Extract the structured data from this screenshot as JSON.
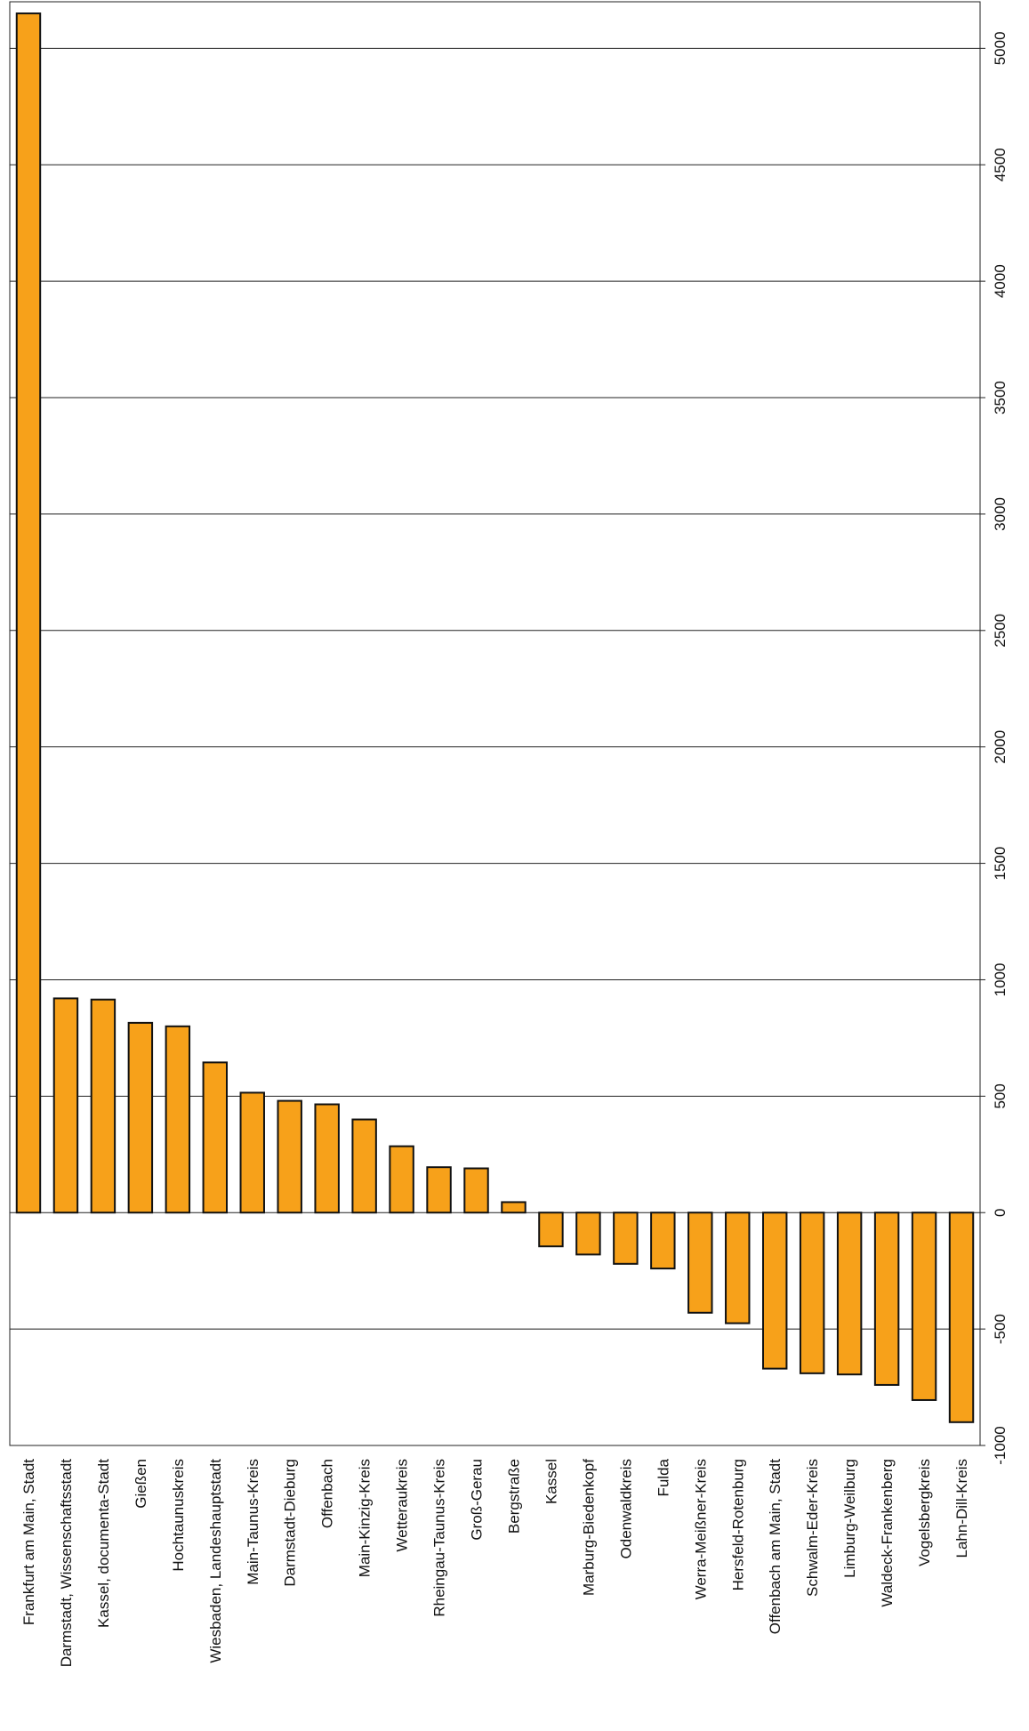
{
  "chart_data": {
    "type": "bar",
    "orientation": "rotated-90",
    "categories": [
      "Frankfurt am Main, Stadt",
      "Darmstadt, Wissenschaftsstadt",
      "Kassel, documenta-Stadt",
      "Gießen",
      "Hochtaunuskreis",
      "Wiesbaden, Landeshauptstadt",
      "Main-Taunus-Kreis",
      "Darmstadt-Dieburg",
      "Offenbach",
      "Main-Kinzig-Kreis",
      "Wetteraukreis",
      "Rheingau-Taunus-Kreis",
      "Groß-Gerau",
      "Bergstraße",
      "Kassel",
      "Marburg-Biedenkopf",
      "Odenwaldkreis",
      "Fulda",
      "Werra-Meißner-Kreis",
      "Hersfeld-Rotenburg",
      "Offenbach am Main, Stadt",
      "Schwalm-Eder-Kreis",
      "Limburg-Weilburg",
      "Waldeck-Frankenberg",
      "Vogelsbergkreis",
      "Lahn-Dill-Kreis"
    ],
    "values": [
      5150,
      920,
      915,
      815,
      800,
      645,
      515,
      480,
      465,
      400,
      285,
      195,
      190,
      45,
      -145,
      -180,
      -220,
      -240,
      -430,
      -475,
      -670,
      -690,
      -695,
      -740,
      -805,
      -900
    ],
    "ylim": [
      -1000,
      5200
    ],
    "yticks": [
      -1000,
      -500,
      0,
      500,
      1000,
      1500,
      2000,
      2500,
      3000,
      3500,
      4000,
      4500,
      5000
    ],
    "grid": true,
    "colors": {
      "bar": "#f7a11a",
      "outline": "#111111"
    }
  }
}
